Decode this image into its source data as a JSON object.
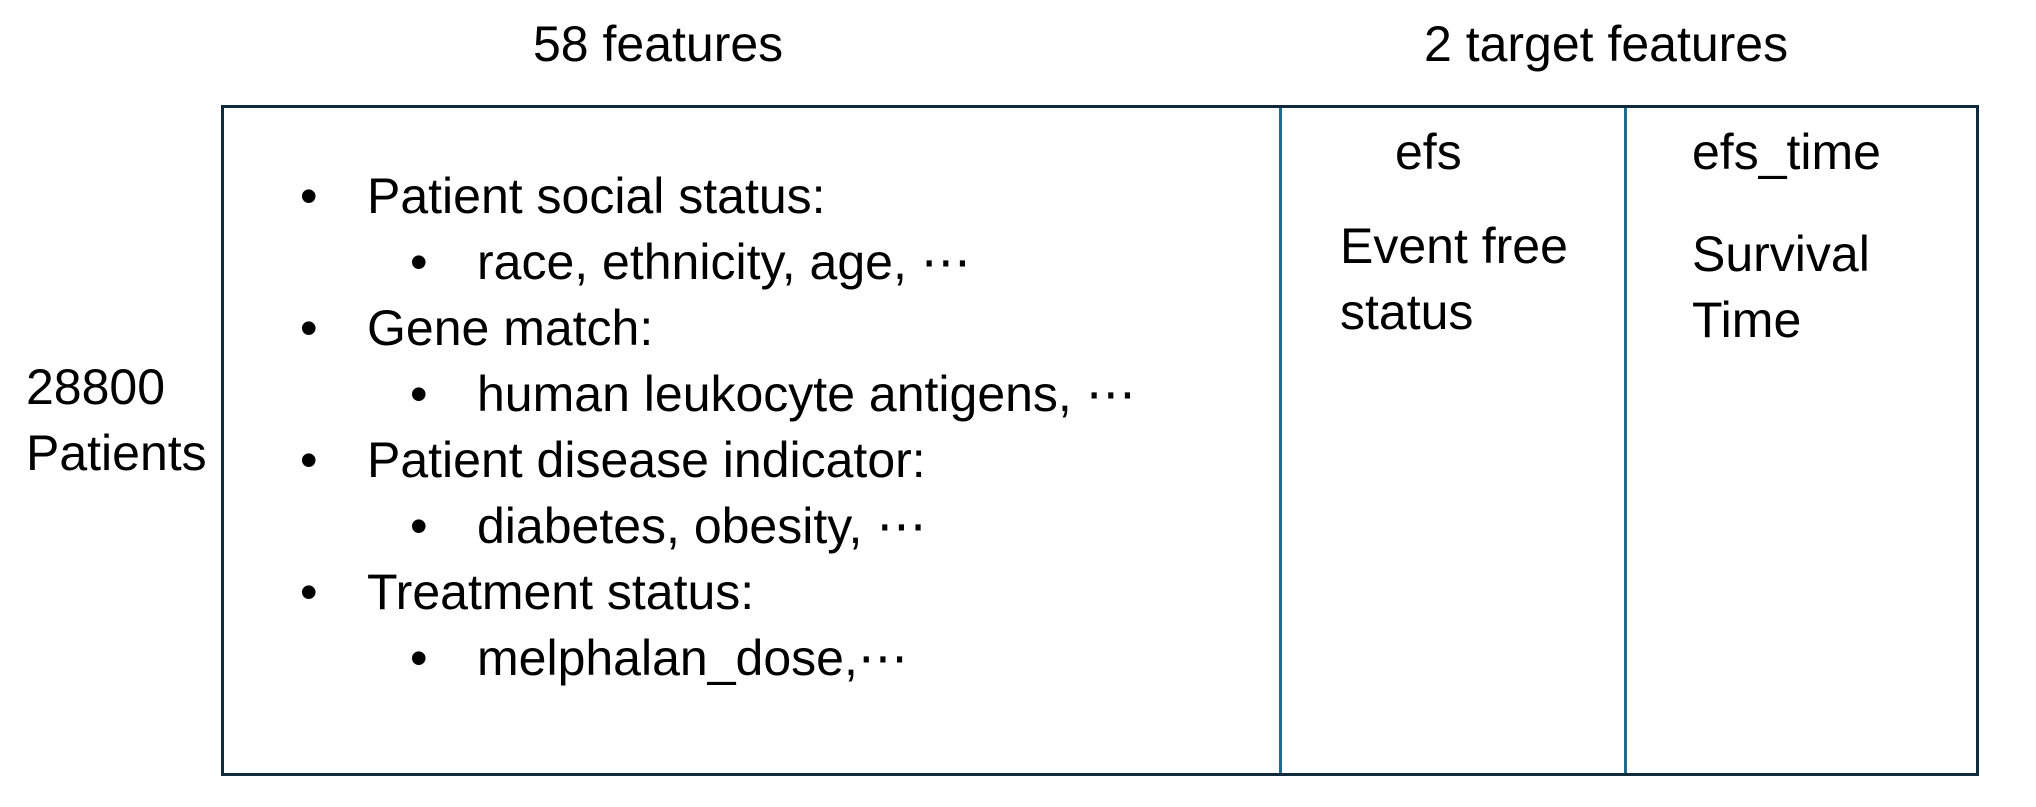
{
  "header": {
    "left_label": "58 features",
    "right_label": "2 target features"
  },
  "row_label": {
    "count": "28800",
    "unit": "Patients"
  },
  "features": {
    "bullet_symbol": "•",
    "groups": [
      {
        "title": "Patient social status:",
        "detail": "race, ethnicity, age, ⋯"
      },
      {
        "title": "Gene match:",
        "detail": "human leukocyte antigens, ⋯"
      },
      {
        "title": "Patient disease indicator:",
        "detail": "diabetes, obesity, ⋯"
      },
      {
        "title": "Treatment status:",
        "detail": "melphalan_dose,⋯"
      }
    ]
  },
  "targets": [
    {
      "name": "efs",
      "description_line1": "Event free",
      "description_line2": "status"
    },
    {
      "name": "efs_time",
      "description_line1": "Survival",
      "description_line2": "Time"
    }
  ],
  "colors": {
    "outer_border": "#0f2a3b",
    "divider": "#1f6b8e",
    "text": "#000000"
  }
}
